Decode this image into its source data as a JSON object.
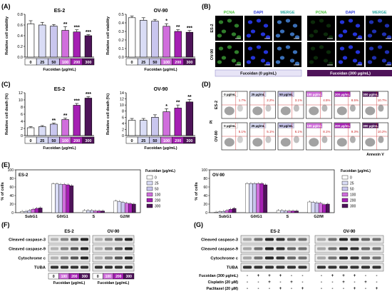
{
  "panels": {
    "A": "(A)",
    "B": "(B)",
    "C": "(C)",
    "D": "(D)",
    "E": "(E)",
    "F": "(F)",
    "G": "(G)"
  },
  "colors": {
    "c0": "#ffffff",
    "c25": "#d9dcf5",
    "c50": "#c9c6ee",
    "c100": "#d06edc",
    "c200": "#a51fb3",
    "c300": "#4e1359",
    "fluor_green": "#4bbf3a",
    "fluor_blue": "#2433d8"
  },
  "chart_data": [
    {
      "type": "bar",
      "id": "A-ES2",
      "title": "ES-2",
      "ylabel": "Relative cell viability",
      "xlabel": "Fucoidan (μg/mL)",
      "categories": [
        "0",
        "25",
        "50",
        "100",
        "200",
        "300"
      ],
      "values": [
        0.62,
        0.6,
        0.58,
        0.5,
        0.47,
        0.4
      ],
      "errors": [
        0.06,
        0.05,
        0.03,
        0.07,
        0.04,
        0.02
      ],
      "sig": [
        "",
        "",
        "",
        "**",
        "***",
        "***"
      ],
      "ylim": [
        0,
        0.8
      ],
      "yticks": [
        "0.0",
        "0.2",
        "0.4",
        "0.6",
        "0.8"
      ]
    },
    {
      "type": "bar",
      "id": "A-OV90",
      "title": "OV-90",
      "ylabel": "Relative cell viability",
      "xlabel": "Fucoidan (μg/mL)",
      "categories": [
        "0",
        "25",
        "50",
        "100",
        "200",
        "300"
      ],
      "values": [
        0.46,
        0.43,
        0.42,
        0.36,
        0.3,
        0.29
      ],
      "errors": [
        0.02,
        0.03,
        0.02,
        0.03,
        0.02,
        0.02
      ],
      "sig": [
        "",
        "",
        "",
        "*",
        "**",
        "***"
      ],
      "ylim": [
        0,
        0.5
      ],
      "yticks": [
        "0.0",
        "0.1",
        "0.2",
        "0.3",
        "0.4",
        "0.5"
      ]
    },
    {
      "type": "bar",
      "id": "C-ES2",
      "title": "ES-2",
      "ylabel": "Relative cell death (%)",
      "xlabel": "Fucoidan (μg/mL)",
      "categories": [
        "0",
        "25",
        "50",
        "100",
        "200",
        "300"
      ],
      "values": [
        2.2,
        2.5,
        3.2,
        4.5,
        8.5,
        10.5
      ],
      "errors": [
        0.3,
        0.3,
        0.3,
        0.4,
        0.5,
        0.4
      ],
      "sig": [
        "",
        "",
        "**",
        "**",
        "***",
        "***"
      ],
      "ylim": [
        0,
        12
      ],
      "yticks": [
        "0",
        "2",
        "4",
        "6",
        "8",
        "10",
        "12"
      ]
    },
    {
      "type": "bar",
      "id": "C-OV90",
      "title": "OV-90",
      "ylabel": "Relative cell death (%)",
      "xlabel": "Fucoidan (μg/mL)",
      "categories": [
        "0",
        "25",
        "50",
        "100",
        "200",
        "300"
      ],
      "values": [
        5.0,
        5.0,
        6.0,
        7.8,
        9.0,
        11.0
      ],
      "errors": [
        0.6,
        0.6,
        0.8,
        1.0,
        1.0,
        0.8
      ],
      "sig": [
        "",
        "",
        "",
        "*",
        "**",
        "**"
      ],
      "ylim": [
        0,
        14
      ],
      "yticks": [
        "0",
        "2",
        "4",
        "6",
        "8",
        "10",
        "12",
        "14"
      ]
    },
    {
      "type": "bar",
      "id": "E-ES2",
      "title": "ES-2",
      "ylabel": "% of cells",
      "categories": [
        "SubG1",
        "G0/G1",
        "S",
        "G2/M"
      ],
      "series": [
        {
          "name": "0",
          "values": [
            3,
            67,
            5,
            27
          ]
        },
        {
          "name": "25",
          "values": [
            3,
            67,
            5,
            26
          ]
        },
        {
          "name": "50",
          "values": [
            5,
            66,
            5,
            24
          ]
        },
        {
          "name": "100",
          "values": [
            8,
            66,
            4,
            22
          ]
        },
        {
          "name": "200",
          "values": [
            10,
            65,
            4,
            21
          ]
        },
        {
          "name": "300",
          "values": [
            11,
            63,
            4,
            20
          ]
        }
      ],
      "ylim": [
        0,
        100
      ],
      "yticks": [
        "0",
        "20",
        "40",
        "60",
        "80",
        "100"
      ],
      "legend_title": "Fucoidan (μg/mL)"
    },
    {
      "type": "bar",
      "id": "E-OV90",
      "title": "OV-90",
      "ylabel": "% of cells",
      "categories": [
        "SubG1",
        "G0/G1",
        "S",
        "G2/M"
      ],
      "series": [
        {
          "name": "0",
          "values": [
            1,
            68,
            5,
            25
          ]
        },
        {
          "name": "25",
          "values": [
            2,
            68,
            5,
            24
          ]
        },
        {
          "name": "50",
          "values": [
            3,
            68,
            4,
            23
          ]
        },
        {
          "name": "100",
          "values": [
            5,
            68,
            4,
            22
          ]
        },
        {
          "name": "200",
          "values": [
            8,
            68,
            4,
            19
          ]
        },
        {
          "name": "300",
          "values": [
            10,
            65,
            4,
            20
          ]
        }
      ],
      "ylim": [
        0,
        100
      ],
      "yticks": [
        "0",
        "20",
        "40",
        "60",
        "80",
        "100"
      ],
      "legend_title": "Fucoidan (μg/mL)"
    }
  ],
  "B": {
    "headers": [
      "PCNA",
      "DAPI",
      "MERGE",
      "PCNA",
      "DAPI",
      "MERGE"
    ],
    "rows": [
      "ES-2",
      "OV-90"
    ],
    "label_left": "Fucoidan (0 μg/mL)",
    "label_right": "Fucoidan (300 μg/mL)"
  },
  "D": {
    "rows": [
      "ES-2",
      "OV-90"
    ],
    "doses": [
      "0 μg/mL",
      "25 μg/mL",
      "50 μg/mL",
      "100 μg/mL",
      "200 μg/mL",
      "300 μg/mL"
    ],
    "es2_pct": [
      "1.7%",
      "2.2%",
      "3.1%",
      "4.5%",
      "8.5%",
      "10.7%"
    ],
    "ov90_pct": [
      "5.1%",
      "5.1%",
      "6.1%",
      "8.1%",
      "9.3%",
      "10.2%"
    ],
    "xaxis": "Annexin V",
    "yaxis": "PI"
  },
  "F": {
    "headers": [
      "ES-2",
      "OV-90"
    ],
    "rows": [
      "Cleaved caspase-3",
      "Cleaved caspase-9",
      "Cytochrome c",
      "TUBA"
    ],
    "doses": [
      "0",
      "100",
      "200",
      "300",
      "0",
      "100",
      "200",
      "300"
    ],
    "xlabel_left": "Fucoidan (μg/mL)",
    "xlabel_right": "Fucoidan (μg/mL)"
  },
  "G": {
    "headers": [
      "ES-2",
      "OV-90"
    ],
    "rows": [
      "Cleaved caspase-3",
      "Cleaved caspase-9",
      "Cytochrome c",
      "TUBA"
    ],
    "treatments": [
      {
        "label": "Fucoidan (300 μg/mL)",
        "signs": [
          "-",
          "+",
          "+",
          "+",
          "-",
          "-",
          "-",
          "+",
          "+",
          "+",
          "-",
          "-"
        ]
      },
      {
        "label": "Cisplatin (20 μM)",
        "signs": [
          "-",
          "-",
          "+",
          "-",
          "+",
          "-",
          "-",
          "-",
          "+",
          "-",
          "+",
          "-"
        ]
      },
      {
        "label": "Paclitaxel (20 μM)",
        "signs": [
          "-",
          "-",
          "-",
          "+",
          "-",
          "+",
          "-",
          "-",
          "-",
          "+",
          "-",
          "+"
        ]
      }
    ]
  }
}
